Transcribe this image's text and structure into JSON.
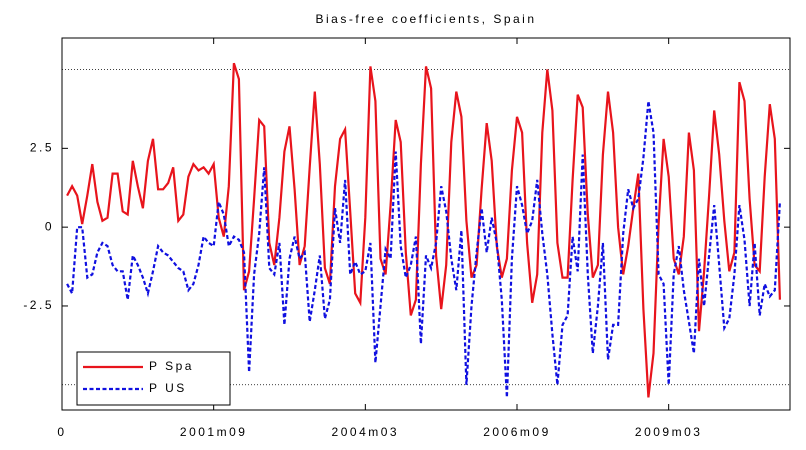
{
  "chart_data": {
    "type": "line",
    "title": "Bias-free coefficients, Spain",
    "x": [
      1,
      2,
      3,
      4,
      5,
      6,
      7,
      8,
      9,
      10,
      11,
      12,
      13,
      14,
      15,
      16,
      17,
      18,
      19,
      20,
      21,
      22,
      23,
      24,
      25,
      26,
      27,
      28,
      29,
      30,
      31,
      32,
      33,
      34,
      35,
      36,
      37,
      38,
      39,
      40,
      41,
      42,
      43,
      44,
      45,
      46,
      47,
      48,
      49,
      50,
      51,
      52,
      53,
      54,
      55,
      56,
      57,
      58,
      59,
      60,
      61,
      62,
      63,
      64,
      65,
      66,
      67,
      68,
      69,
      70,
      71,
      72,
      73,
      74,
      75,
      76,
      77,
      78,
      79,
      80,
      81,
      82,
      83,
      84,
      85,
      86,
      87,
      88,
      89,
      90,
      91,
      92,
      93,
      94,
      95,
      96,
      97,
      98,
      99,
      100,
      101,
      102,
      103,
      104,
      105,
      106,
      107,
      108,
      109,
      110,
      111,
      112,
      113,
      114,
      115,
      116,
      117,
      118,
      119,
      120,
      121,
      122,
      123,
      124,
      125,
      126,
      127,
      128,
      129,
      130,
      131,
      132,
      133,
      134,
      135,
      136,
      137,
      138,
      139,
      140,
      141,
      142
    ],
    "series": [
      {
        "name": "P Spa",
        "color": "#e8141c",
        "dash": false,
        "values": [
          1.0,
          1.3,
          1.0,
          0.1,
          1.0,
          2.0,
          0.8,
          0.2,
          0.3,
          1.7,
          1.7,
          0.5,
          0.4,
          2.1,
          1.3,
          0.6,
          2.1,
          2.8,
          1.2,
          1.2,
          1.4,
          1.9,
          0.2,
          0.4,
          1.6,
          2.0,
          1.8,
          1.9,
          1.7,
          2.0,
          0.3,
          -0.3,
          1.3,
          5.2,
          4.7,
          -2.0,
          -1.4,
          0.9,
          3.4,
          3.2,
          -0.5,
          -1.2,
          0.3,
          2.4,
          3.2,
          1.2,
          -1.2,
          -0.6,
          1.9,
          4.3,
          2.0,
          -1.3,
          -1.8,
          1.3,
          2.8,
          3.1,
          0.5,
          -2.1,
          -2.4,
          0.3,
          5.1,
          4.0,
          -1.0,
          -1.5,
          0.7,
          3.4,
          2.7,
          -0.8,
          -2.8,
          -2.3,
          2.0,
          5.1,
          4.4,
          -0.9,
          -2.6,
          -1.2,
          2.7,
          4.3,
          3.5,
          0.2,
          -1.6,
          -1.2,
          1.2,
          3.3,
          2.1,
          -0.6,
          -1.6,
          -1.0,
          1.8,
          3.5,
          3.0,
          -0.5,
          -2.4,
          -1.5,
          3.0,
          5.0,
          3.7,
          -0.5,
          -1.6,
          -1.6,
          1.5,
          4.2,
          3.8,
          0.4,
          -1.6,
          -1.2,
          2.3,
          4.3,
          3.0,
          0.0,
          -1.5,
          -0.6,
          0.6,
          1.7,
          -2.6,
          -5.4,
          -4.0,
          0.1,
          2.8,
          1.6,
          -1.0,
          -1.5,
          -0.3,
          3.0,
          1.8,
          -3.3,
          -1.4,
          1.0,
          3.7,
          2.3,
          0.2,
          -1.4,
          -0.8,
          4.6,
          4.0,
          0.9,
          -1.2,
          -1.4,
          1.6,
          3.9,
          2.8,
          -2.3
        ]
      },
      {
        "name": "P US",
        "color": "#1010e0",
        "dash": true,
        "values": [
          -1.8,
          -2.1,
          0.0,
          0.0,
          -1.6,
          -1.5,
          -0.8,
          -0.5,
          -0.6,
          -1.2,
          -1.4,
          -1.4,
          -2.3,
          -0.9,
          -1.2,
          -1.6,
          -2.1,
          -1.4,
          -0.6,
          -0.8,
          -0.9,
          -1.1,
          -1.3,
          -1.4,
          -2.0,
          -1.8,
          -1.2,
          -0.3,
          -0.5,
          -0.6,
          0.8,
          0.4,
          -0.6,
          -0.3,
          -0.4,
          -0.8,
          -4.6,
          -1.5,
          -0.2,
          1.9,
          -1.3,
          -1.5,
          -0.5,
          -3.1,
          -1.0,
          -0.3,
          -1.0,
          -0.8,
          -3.0,
          -2.0,
          -0.9,
          -2.9,
          -2.3,
          0.6,
          -0.5,
          1.5,
          -1.5,
          -1.1,
          -1.5,
          -1.4,
          -0.5,
          -4.3,
          -2.5,
          -0.7,
          -1.0,
          2.4,
          -0.6,
          -1.6,
          -1.2,
          -0.3,
          -3.7,
          -0.9,
          -1.3,
          -0.5,
          1.3,
          0.5,
          -1.0,
          -2.0,
          -0.1,
          -5.0,
          -2.5,
          -0.8,
          0.6,
          -0.8,
          0.3,
          -0.5,
          -2.3,
          -5.4,
          -1.0,
          1.3,
          0.7,
          -0.2,
          0.2,
          1.5,
          -0.2,
          -1.5,
          -3.4,
          -5.0,
          -3.1,
          -2.8,
          -0.3,
          -1.4,
          2.3,
          -1.5,
          -4.0,
          -2.5,
          -0.5,
          -4.2,
          -3.1,
          -3.1,
          -0.2,
          1.2,
          0.6,
          0.9,
          2.2,
          4.0,
          3.0,
          -1.5,
          -1.8,
          -5.0,
          -1.5,
          -0.6,
          -2.0,
          -3.0,
          -4.0,
          -1.0,
          -2.5,
          -0.9,
          0.7,
          -1.2,
          -3.2,
          -2.9,
          -1.5,
          0.7,
          -0.4,
          -2.5,
          -0.5,
          -2.8,
          -1.8,
          -2.2,
          -2.0,
          0.8
        ]
      }
    ],
    "xlim": [
      0,
      144
    ],
    "xticks": [
      0,
      {
        "value": 30,
        "label": "2001m09"
      },
      {
        "value": 60,
        "label": "2004m03"
      },
      {
        "value": 90,
        "label": "2006m09"
      },
      {
        "value": 120,
        "label": "2009m03"
      }
    ],
    "ylim": [
      -5.8,
      6
    ],
    "yticks": [
      -2.5,
      0,
      2.5
    ],
    "grid_lines": [
      -5,
      5
    ],
    "legend": "lower left"
  }
}
